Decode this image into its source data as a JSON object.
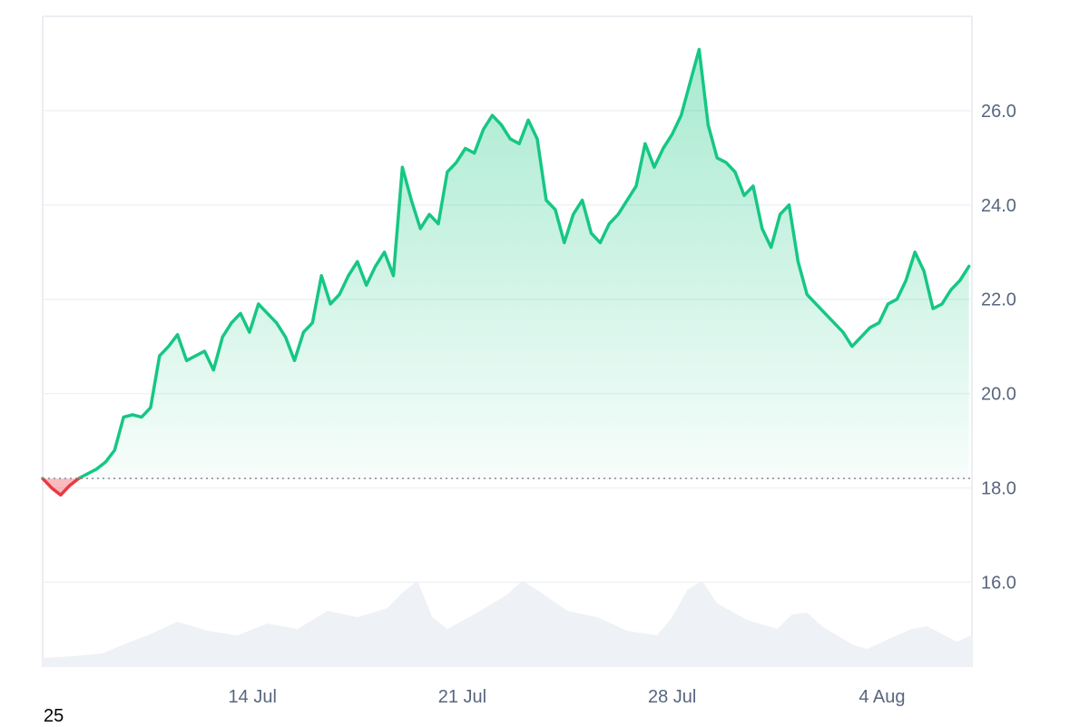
{
  "corner_label": "25",
  "chart_data": {
    "type": "area",
    "title": "",
    "xlabel": "",
    "ylabel": "",
    "x_tick_labels": [
      {
        "label": "14 Jul",
        "day": 7
      },
      {
        "label": "21 Jul",
        "day": 14
      },
      {
        "label": "28 Jul",
        "day": 21
      },
      {
        "label": "4 Aug",
        "day": 28
      }
    ],
    "y_ticks": [
      "16.0",
      "18.0",
      "20.0",
      "22.0",
      "24.0",
      "26.0"
    ],
    "ylim": [
      14.2,
      28.0
    ],
    "x_range_days": [
      0,
      31
    ],
    "baseline": 18.2,
    "grid": true,
    "colors": {
      "up": "#16c784",
      "down": "#ea3943",
      "volume": "#eef1f5",
      "grid": "#eff2f5",
      "baseline": "#808a9d"
    },
    "price_series": [
      [
        0.0,
        18.2
      ],
      [
        0.3,
        18.0
      ],
      [
        0.6,
        17.85
      ],
      [
        0.9,
        18.05
      ],
      [
        1.2,
        18.2
      ],
      [
        1.5,
        18.3
      ],
      [
        1.8,
        18.4
      ],
      [
        2.1,
        18.55
      ],
      [
        2.4,
        18.8
      ],
      [
        2.7,
        19.5
      ],
      [
        3.0,
        19.55
      ],
      [
        3.3,
        19.5
      ],
      [
        3.6,
        19.7
      ],
      [
        3.9,
        20.8
      ],
      [
        4.2,
        21.0
      ],
      [
        4.5,
        21.25
      ],
      [
        4.8,
        20.7
      ],
      [
        5.1,
        20.8
      ],
      [
        5.4,
        20.9
      ],
      [
        5.7,
        20.5
      ],
      [
        6.0,
        21.2
      ],
      [
        6.3,
        21.5
      ],
      [
        6.6,
        21.7
      ],
      [
        6.9,
        21.3
      ],
      [
        7.2,
        21.9
      ],
      [
        7.5,
        21.7
      ],
      [
        7.8,
        21.5
      ],
      [
        8.1,
        21.2
      ],
      [
        8.4,
        20.7
      ],
      [
        8.7,
        21.3
      ],
      [
        9.0,
        21.5
      ],
      [
        9.3,
        22.5
      ],
      [
        9.6,
        21.9
      ],
      [
        9.9,
        22.1
      ],
      [
        10.2,
        22.5
      ],
      [
        10.5,
        22.8
      ],
      [
        10.8,
        22.3
      ],
      [
        11.1,
        22.7
      ],
      [
        11.4,
        23.0
      ],
      [
        11.7,
        22.5
      ],
      [
        12.0,
        24.8
      ],
      [
        12.3,
        24.1
      ],
      [
        12.6,
        23.5
      ],
      [
        12.9,
        23.8
      ],
      [
        13.2,
        23.6
      ],
      [
        13.5,
        24.7
      ],
      [
        13.8,
        24.9
      ],
      [
        14.1,
        25.2
      ],
      [
        14.4,
        25.1
      ],
      [
        14.7,
        25.6
      ],
      [
        15.0,
        25.9
      ],
      [
        15.3,
        25.7
      ],
      [
        15.6,
        25.4
      ],
      [
        15.9,
        25.3
      ],
      [
        16.2,
        25.8
      ],
      [
        16.5,
        25.4
      ],
      [
        16.8,
        24.1
      ],
      [
        17.1,
        23.9
      ],
      [
        17.4,
        23.2
      ],
      [
        17.7,
        23.8
      ],
      [
        18.0,
        24.1
      ],
      [
        18.3,
        23.4
      ],
      [
        18.6,
        23.2
      ],
      [
        18.9,
        23.6
      ],
      [
        19.2,
        23.8
      ],
      [
        19.5,
        24.1
      ],
      [
        19.8,
        24.4
      ],
      [
        20.1,
        25.3
      ],
      [
        20.4,
        24.8
      ],
      [
        20.7,
        25.2
      ],
      [
        21.0,
        25.5
      ],
      [
        21.3,
        25.9
      ],
      [
        21.6,
        26.6
      ],
      [
        21.9,
        27.3
      ],
      [
        22.2,
        25.7
      ],
      [
        22.5,
        25.0
      ],
      [
        22.8,
        24.9
      ],
      [
        23.1,
        24.7
      ],
      [
        23.4,
        24.2
      ],
      [
        23.7,
        24.4
      ],
      [
        24.0,
        23.5
      ],
      [
        24.3,
        23.1
      ],
      [
        24.6,
        23.8
      ],
      [
        24.9,
        24.0
      ],
      [
        25.2,
        22.8
      ],
      [
        25.5,
        22.1
      ],
      [
        25.8,
        21.9
      ],
      [
        26.1,
        21.7
      ],
      [
        26.4,
        21.5
      ],
      [
        26.7,
        21.3
      ],
      [
        27.0,
        21.0
      ],
      [
        27.3,
        21.2
      ],
      [
        27.6,
        21.4
      ],
      [
        27.9,
        21.5
      ],
      [
        28.2,
        21.9
      ],
      [
        28.5,
        22.0
      ],
      [
        28.8,
        22.4
      ],
      [
        29.1,
        23.0
      ],
      [
        29.4,
        22.6
      ],
      [
        29.7,
        21.8
      ],
      [
        30.0,
        21.9
      ],
      [
        30.3,
        22.2
      ],
      [
        30.6,
        22.4
      ],
      [
        30.9,
        22.7
      ]
    ],
    "volume_series": [
      [
        0.0,
        0.1
      ],
      [
        1.0,
        0.12
      ],
      [
        2.0,
        0.15
      ],
      [
        2.7,
        0.25
      ],
      [
        3.5,
        0.35
      ],
      [
        4.5,
        0.5
      ],
      [
        5.5,
        0.4
      ],
      [
        6.5,
        0.35
      ],
      [
        7.5,
        0.48
      ],
      [
        8.5,
        0.42
      ],
      [
        9.5,
        0.62
      ],
      [
        10.5,
        0.55
      ],
      [
        11.5,
        0.65
      ],
      [
        12.0,
        0.82
      ],
      [
        12.5,
        0.95
      ],
      [
        13.0,
        0.55
      ],
      [
        13.5,
        0.42
      ],
      [
        14.5,
        0.6
      ],
      [
        15.5,
        0.8
      ],
      [
        16.0,
        0.95
      ],
      [
        16.5,
        0.85
      ],
      [
        17.5,
        0.62
      ],
      [
        18.5,
        0.55
      ],
      [
        19.5,
        0.4
      ],
      [
        20.5,
        0.35
      ],
      [
        21.0,
        0.55
      ],
      [
        21.5,
        0.85
      ],
      [
        22.0,
        0.95
      ],
      [
        22.5,
        0.7
      ],
      [
        23.5,
        0.52
      ],
      [
        24.5,
        0.42
      ],
      [
        25.0,
        0.58
      ],
      [
        25.5,
        0.6
      ],
      [
        26.0,
        0.45
      ],
      [
        27.0,
        0.25
      ],
      [
        27.5,
        0.2
      ],
      [
        28.5,
        0.35
      ],
      [
        29.0,
        0.42
      ],
      [
        29.5,
        0.45
      ],
      [
        30.5,
        0.28
      ],
      [
        31.0,
        0.35
      ]
    ]
  }
}
